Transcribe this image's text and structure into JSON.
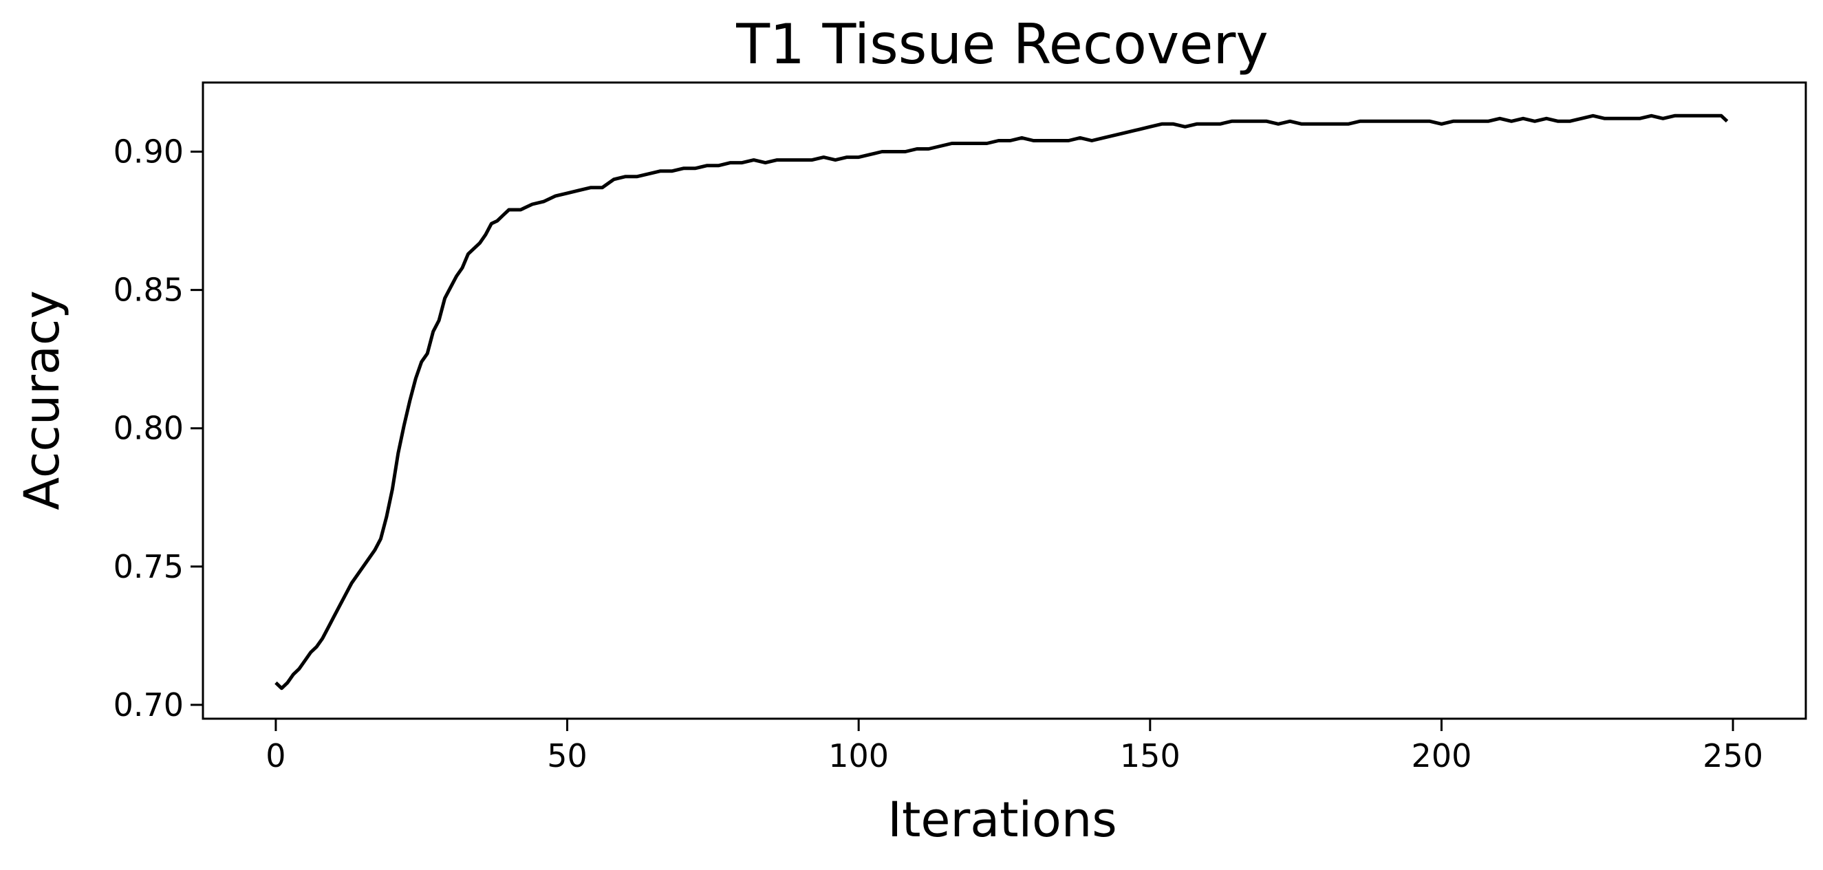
{
  "chart_data": {
    "type": "line",
    "title": "T1 Tissue Recovery",
    "xlabel": "Iterations",
    "ylabel": "Accuracy",
    "xlim": [
      -12.5,
      262.5
    ],
    "ylim": [
      0.695,
      0.925
    ],
    "xticks": [
      0,
      50,
      100,
      150,
      200,
      250
    ],
    "xtick_labels": [
      "0",
      "50",
      "100",
      "150",
      "200",
      "250"
    ],
    "yticks": [
      0.7,
      0.75,
      0.8,
      0.85,
      0.9
    ],
    "ytick_labels": [
      "0.70",
      "0.75",
      "0.80",
      "0.85",
      "0.90"
    ],
    "grid": false,
    "series": [
      {
        "color": "#000000",
        "x": [
          0,
          1,
          2,
          3,
          4,
          5,
          6,
          7,
          8,
          9,
          10,
          11,
          12,
          13,
          14,
          15,
          16,
          17,
          18,
          19,
          20,
          21,
          22,
          23,
          24,
          25,
          26,
          27,
          28,
          29,
          30,
          31,
          32,
          33,
          34,
          35,
          36,
          37,
          38,
          39,
          40,
          42,
          44,
          46,
          48,
          50,
          52,
          54,
          56,
          58,
          60,
          62,
          64,
          66,
          68,
          70,
          72,
          74,
          76,
          78,
          80,
          82,
          84,
          86,
          88,
          90,
          92,
          94,
          96,
          98,
          100,
          102,
          104,
          106,
          108,
          110,
          112,
          114,
          116,
          118,
          120,
          122,
          124,
          126,
          128,
          130,
          132,
          134,
          136,
          138,
          140,
          142,
          144,
          146,
          148,
          150,
          152,
          154,
          156,
          158,
          160,
          162,
          164,
          166,
          168,
          170,
          172,
          174,
          176,
          178,
          180,
          182,
          184,
          186,
          188,
          190,
          192,
          194,
          196,
          198,
          200,
          202,
          204,
          206,
          208,
          210,
          212,
          214,
          216,
          218,
          220,
          222,
          224,
          226,
          228,
          230,
          232,
          234,
          236,
          238,
          240,
          242,
          244,
          246,
          248,
          249
        ],
        "y": [
          0.708,
          0.706,
          0.708,
          0.711,
          0.713,
          0.716,
          0.719,
          0.721,
          0.724,
          0.728,
          0.732,
          0.736,
          0.74,
          0.744,
          0.747,
          0.75,
          0.753,
          0.756,
          0.76,
          0.768,
          0.778,
          0.791,
          0.801,
          0.81,
          0.818,
          0.824,
          0.827,
          0.835,
          0.839,
          0.847,
          0.851,
          0.855,
          0.858,
          0.863,
          0.865,
          0.867,
          0.87,
          0.874,
          0.875,
          0.877,
          0.879,
          0.879,
          0.881,
          0.882,
          0.884,
          0.885,
          0.886,
          0.887,
          0.887,
          0.89,
          0.891,
          0.891,
          0.892,
          0.893,
          0.893,
          0.894,
          0.894,
          0.895,
          0.895,
          0.896,
          0.896,
          0.897,
          0.896,
          0.897,
          0.897,
          0.897,
          0.897,
          0.898,
          0.897,
          0.898,
          0.898,
          0.899,
          0.9,
          0.9,
          0.9,
          0.901,
          0.901,
          0.902,
          0.903,
          0.903,
          0.903,
          0.903,
          0.904,
          0.904,
          0.905,
          0.904,
          0.904,
          0.904,
          0.904,
          0.905,
          0.904,
          0.905,
          0.906,
          0.907,
          0.908,
          0.909,
          0.91,
          0.91,
          0.909,
          0.91,
          0.91,
          0.91,
          0.911,
          0.911,
          0.911,
          0.911,
          0.91,
          0.911,
          0.91,
          0.91,
          0.91,
          0.91,
          0.91,
          0.911,
          0.911,
          0.911,
          0.911,
          0.911,
          0.911,
          0.911,
          0.91,
          0.911,
          0.911,
          0.911,
          0.911,
          0.912,
          0.911,
          0.912,
          0.911,
          0.912,
          0.911,
          0.911,
          0.912,
          0.913,
          0.912,
          0.912,
          0.912,
          0.912,
          0.913,
          0.912,
          0.913,
          0.913,
          0.913,
          0.913,
          0.913,
          0.911
        ]
      }
    ]
  }
}
